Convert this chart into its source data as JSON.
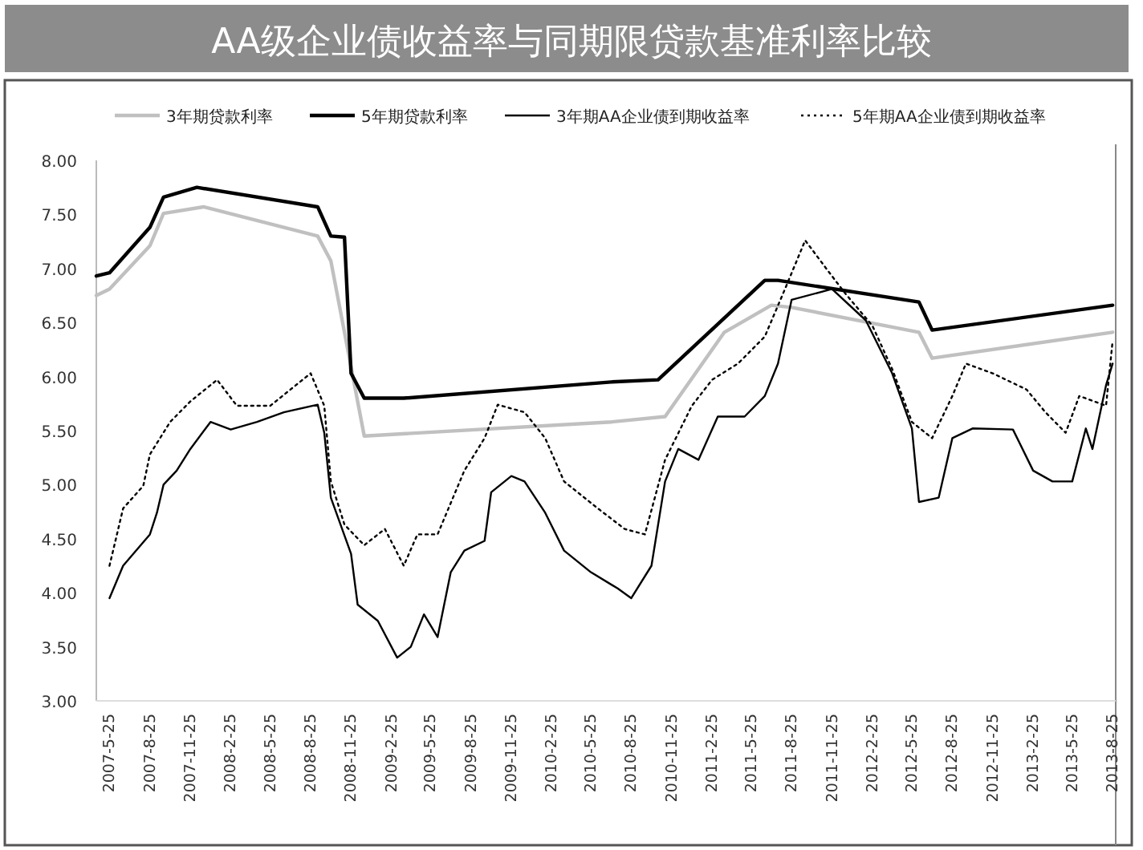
{
  "chart_data": {
    "type": "line",
    "title": "AA级企业债收益率与同期限贷款基准利率比较",
    "legend": "top",
    "grid": false,
    "xlim": [
      "2007-04-25",
      "2013-09-01"
    ],
    "xticks": [
      {
        "value": "2007-05-25",
        "label": "2007-5-25"
      },
      {
        "value": "2007-08-25",
        "label": "2007-8-25"
      },
      {
        "value": "2007-11-25",
        "label": "2007-11-25"
      },
      {
        "value": "2008-02-25",
        "label": "2008-2-25"
      },
      {
        "value": "2008-05-25",
        "label": "2008-5-25"
      },
      {
        "value": "2008-08-25",
        "label": "2008-8-25"
      },
      {
        "value": "2008-11-25",
        "label": "2008-11-25"
      },
      {
        "value": "2009-02-25",
        "label": "2009-2-25"
      },
      {
        "value": "2009-05-25",
        "label": "2009-5-25"
      },
      {
        "value": "2009-08-25",
        "label": "2009-8-25"
      },
      {
        "value": "2009-11-25",
        "label": "2009-11-25"
      },
      {
        "value": "2010-02-25",
        "label": "2010-2-25"
      },
      {
        "value": "2010-05-25",
        "label": "2010-5-25"
      },
      {
        "value": "2010-08-25",
        "label": "2010-8-25"
      },
      {
        "value": "2010-11-25",
        "label": "2010-11-25"
      },
      {
        "value": "2011-02-25",
        "label": "2011-2-25"
      },
      {
        "value": "2011-05-25",
        "label": "2011-5-25"
      },
      {
        "value": "2011-08-25",
        "label": "2011-8-25"
      },
      {
        "value": "2011-11-25",
        "label": "2011-11-25"
      },
      {
        "value": "2012-02-25",
        "label": "2012-2-25"
      },
      {
        "value": "2012-05-25",
        "label": "2012-5-25"
      },
      {
        "value": "2012-08-25",
        "label": "2012-8-25"
      },
      {
        "value": "2012-11-25",
        "label": "2012-11-25"
      },
      {
        "value": "2013-02-25",
        "label": "2013-2-25"
      },
      {
        "value": "2013-05-25",
        "label": "2013-5-25"
      },
      {
        "value": "2013-08-25",
        "label": "2013-8-25"
      }
    ],
    "ylim": [
      3,
      8
    ],
    "yticks": [
      {
        "value": 3,
        "label": "3.00"
      },
      {
        "value": 3.5,
        "label": "3.50"
      },
      {
        "value": 4,
        "label": "4.00"
      },
      {
        "value": 4.5,
        "label": "4.50"
      },
      {
        "value": 5,
        "label": "5.00"
      },
      {
        "value": 5.5,
        "label": "5.50"
      },
      {
        "value": 6,
        "label": "6.00"
      },
      {
        "value": 6.5,
        "label": "6.50"
      },
      {
        "value": 7,
        "label": "7.00"
      },
      {
        "value": 7.5,
        "label": "7.50"
      },
      {
        "value": 8,
        "label": "8.00"
      }
    ],
    "series": [
      {
        "name": "3年期贷款利率",
        "color": "#c0c0c0",
        "line_style": "solid",
        "x": [
          "2007-04-25",
          "2007-05-25",
          "2007-08-25",
          "2007-09-25",
          "2007-12-25",
          "2008-09-10",
          "2008-10-10",
          "2008-12-25",
          "2010-07-10",
          "2010-11-10",
          "2011-03-25",
          "2011-07-10",
          "2011-08-25",
          "2012-06-10",
          "2012-07-10",
          "2013-08-25"
        ],
        "values": [
          6.75,
          6.81,
          7.21,
          7.51,
          7.57,
          7.3,
          7.07,
          5.45,
          5.58,
          5.63,
          6.41,
          6.66,
          6.64,
          6.41,
          6.17,
          6.41
        ]
      },
      {
        "name": "5年期贷款利率",
        "color": "#000000",
        "line_style": "solid",
        "x": [
          "2007-04-25",
          "2007-05-25",
          "2007-08-25",
          "2007-09-25",
          "2007-12-10",
          "2008-09-10",
          "2008-10-10",
          "2008-11-10",
          "2008-11-25",
          "2008-12-25",
          "2009-03-25",
          "2010-07-10",
          "2010-10-25",
          "2011-06-25",
          "2011-07-25",
          "2012-06-10",
          "2012-07-10",
          "2013-08-25"
        ],
        "values": [
          6.93,
          6.96,
          7.38,
          7.66,
          7.75,
          7.57,
          7.3,
          7.29,
          6.03,
          5.8,
          5.8,
          5.95,
          5.97,
          6.89,
          6.89,
          6.69,
          6.43,
          6.66
        ]
      },
      {
        "name": "3年期AA企业债到期收益率",
        "color": "#000000",
        "line_style": "solid",
        "x": [
          "2007-05-25",
          "2007-06-25",
          "2007-08-25",
          "2007-09-10",
          "2007-09-25",
          "2007-10-25",
          "2007-11-25",
          "2008-01-10",
          "2008-02-25",
          "2008-04-25",
          "2008-06-25",
          "2008-09-10",
          "2008-09-25",
          "2008-10-10",
          "2008-11-25",
          "2008-12-10",
          "2009-01-25",
          "2009-03-10",
          "2009-04-10",
          "2009-05-10",
          "2009-06-10",
          "2009-07-10",
          "2009-08-10",
          "2009-09-25",
          "2009-10-10",
          "2009-11-25",
          "2009-12-25",
          "2010-02-10",
          "2010-03-25",
          "2010-05-25",
          "2010-07-25",
          "2010-08-25",
          "2010-10-10",
          "2010-11-10",
          "2010-12-10",
          "2011-01-25",
          "2011-03-10",
          "2011-05-10",
          "2011-06-25",
          "2011-07-25",
          "2011-08-25",
          "2011-11-25",
          "2012-02-10",
          "2012-04-10",
          "2012-05-25",
          "2012-06-10",
          "2012-07-25",
          "2012-08-25",
          "2012-10-10",
          "2013-01-10",
          "2013-02-25",
          "2013-04-10",
          "2013-05-25",
          "2013-06-25",
          "2013-07-10",
          "2013-08-10",
          "2013-08-25"
        ],
        "values": [
          3.95,
          4.25,
          4.54,
          4.74,
          5.0,
          5.13,
          5.33,
          5.58,
          5.51,
          5.58,
          5.67,
          5.74,
          5.48,
          4.88,
          4.36,
          3.89,
          3.74,
          3.4,
          3.5,
          3.8,
          3.59,
          4.19,
          4.39,
          4.48,
          4.93,
          5.08,
          5.03,
          4.74,
          4.39,
          4.19,
          4.04,
          3.95,
          4.25,
          5.03,
          5.33,
          5.23,
          5.63,
          5.63,
          5.82,
          6.12,
          6.71,
          6.81,
          6.52,
          6.03,
          5.52,
          4.84,
          4.88,
          5.43,
          5.52,
          5.51,
          5.13,
          5.03,
          5.03,
          5.52,
          5.33,
          5.92,
          6.12
        ]
      },
      {
        "name": "5年期AA企业债到期收益率",
        "color": "#000000",
        "line_style": "dotted",
        "x": [
          "2007-05-25",
          "2007-06-25",
          "2007-08-10",
          "2007-08-25",
          "2007-10-10",
          "2007-11-25",
          "2008-01-25",
          "2008-03-10",
          "2008-05-25",
          "2008-08-25",
          "2008-09-25",
          "2008-10-10",
          "2008-11-10",
          "2008-12-25",
          "2009-02-10",
          "2009-03-25",
          "2009-04-25",
          "2009-06-10",
          "2009-08-10",
          "2009-09-25",
          "2009-10-25",
          "2009-12-25",
          "2010-02-10",
          "2010-03-25",
          "2010-06-10",
          "2010-08-10",
          "2010-09-25",
          "2010-11-10",
          "2011-01-10",
          "2011-02-25",
          "2011-04-25",
          "2011-06-25",
          "2011-08-10",
          "2011-09-25",
          "2011-11-10",
          "2011-12-25",
          "2012-02-25",
          "2012-04-10",
          "2012-05-25",
          "2012-07-10",
          "2012-08-25",
          "2012-09-25",
          "2012-11-25",
          "2013-02-10",
          "2013-03-25",
          "2013-05-10",
          "2013-06-10",
          "2013-08-10",
          "2013-08-25"
        ],
        "values": [
          4.25,
          4.78,
          4.99,
          5.28,
          5.58,
          5.77,
          5.97,
          5.73,
          5.73,
          6.03,
          5.73,
          5.03,
          4.63,
          4.44,
          4.59,
          4.25,
          4.54,
          4.54,
          5.13,
          5.43,
          5.74,
          5.67,
          5.43,
          5.03,
          4.78,
          4.59,
          4.54,
          5.23,
          5.73,
          5.97,
          6.12,
          6.37,
          6.81,
          7.26,
          7.01,
          6.77,
          6.47,
          6.07,
          5.58,
          5.43,
          5.82,
          6.12,
          6.03,
          5.88,
          5.67,
          5.48,
          5.82,
          5.73,
          6.33
        ]
      }
    ]
  }
}
